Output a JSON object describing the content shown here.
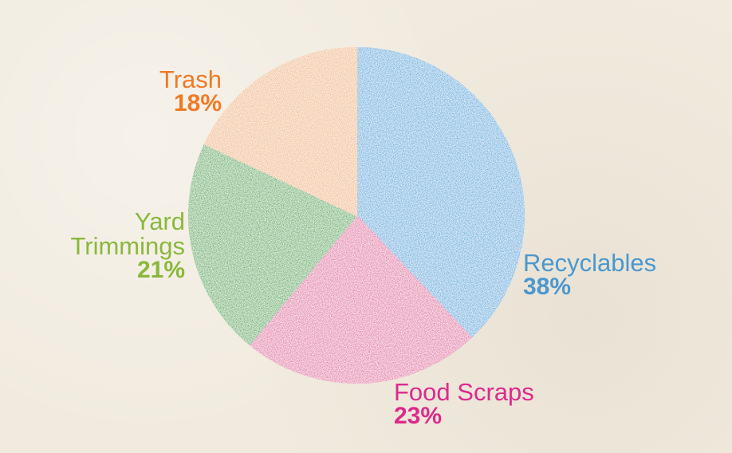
{
  "chart_data": {
    "type": "pie",
    "slices": [
      {
        "name": "Recyclables",
        "value": 38,
        "value_label": "38%",
        "color": "#3aa8dd",
        "label_color": "#4a98cf"
      },
      {
        "name": "Food Scraps",
        "value": 23,
        "value_label": "23%",
        "color": "#e2609f",
        "label_color": "#dd2a8c"
      },
      {
        "name": "Yard Trimmings",
        "value": 21,
        "value_label": "21%",
        "color": "#3aa83c",
        "label_color": "#8ab83a"
      },
      {
        "name": "Trash",
        "value": 18,
        "value_label": "18%",
        "color": "#f1b57a",
        "label_color": "#ef7a25"
      }
    ],
    "labels": {
      "trash": {
        "name": "Trash",
        "pct": "18%"
      },
      "yard": {
        "name_line1": "Yard",
        "name_line2": "Trimmings",
        "pct": "21%"
      },
      "recyclables": {
        "name": "Recyclables",
        "pct": "38%"
      },
      "food": {
        "name": "Food Scraps",
        "pct": "23%"
      }
    }
  }
}
